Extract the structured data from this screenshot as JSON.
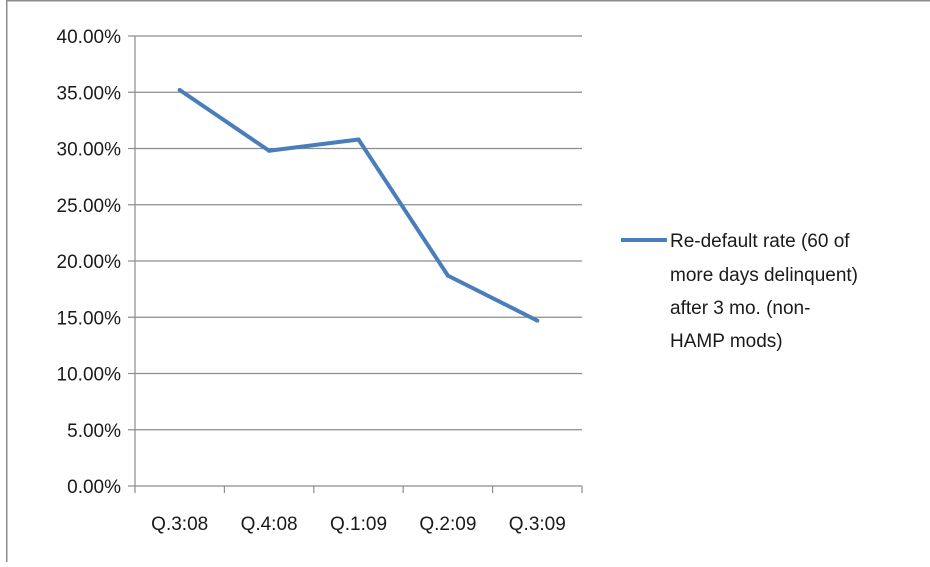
{
  "chart_data": {
    "type": "line",
    "title": "",
    "xlabel": "",
    "ylabel": "",
    "categories": [
      "Q.3:08",
      "Q.4:08",
      "Q.1:09",
      "Q.2:09",
      "Q.3:09"
    ],
    "series": [
      {
        "name": "Re-default rate (60 of more days delinquent) after 3 mo. (non-HAMP mods)",
        "values": [
          35.2,
          29.8,
          30.8,
          18.7,
          14.7
        ],
        "color": "#4a7ebb"
      }
    ],
    "ylim": [
      0,
      40
    ],
    "yticks": [
      0,
      5,
      10,
      15,
      20,
      25,
      30,
      35,
      40
    ],
    "ytick_labels": [
      "0.00%",
      "5.00%",
      "10.00%",
      "15.00%",
      "20.00%",
      "25.00%",
      "30.00%",
      "35.00%",
      "40.00%"
    ],
    "grid": true,
    "legend_position": "right",
    "legend_lines": [
      "Re-default rate (60 of",
      "more days delinquent)",
      "after 3 mo. (non-",
      "HAMP mods)"
    ]
  }
}
